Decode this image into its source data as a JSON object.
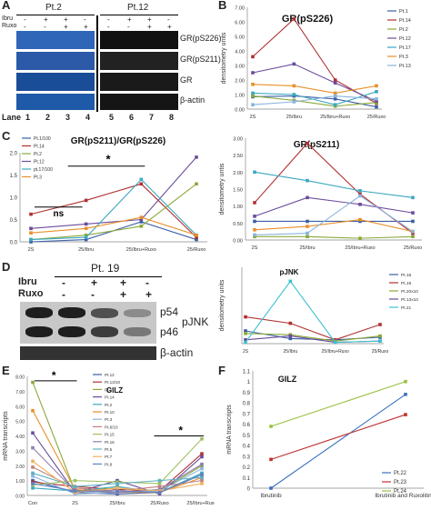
{
  "panelA": {
    "letter": "A",
    "pt2": "Pt.2",
    "pt12": "Pt.12",
    "ibru_label": "Ibru",
    "ruxo_label": "Ruxo",
    "ibru_signs": [
      "-",
      "+",
      "+",
      "-",
      "-",
      "+",
      "+",
      "-"
    ],
    "ruxo_signs": [
      "-",
      "-",
      "+",
      "+",
      "-",
      "-",
      "+",
      "+"
    ],
    "rows": [
      "GR(pS226)",
      "GR(pS211)",
      "GR",
      "β-actin"
    ],
    "lane_label": "Lane",
    "lanes": [
      "1",
      "2",
      "3",
      "4",
      "5",
      "6",
      "7",
      "8"
    ]
  },
  "panelB": {
    "letter": "B",
    "chart_data": {
      "type": "line",
      "title": "GR(pS226)",
      "ylabel": "densitometry units",
      "categories": [
        "2S",
        "25/Ibru",
        "25/Ibru+Ruxo",
        "25/Ruxo"
      ],
      "ylim": [
        0,
        7
      ],
      "yticks": [
        "0.00",
        "1.00",
        "2.00",
        "3.00",
        "4.00",
        "5.00",
        "6.00",
        "7.00"
      ],
      "series": [
        {
          "name": "Pt.1",
          "color": "#3a5fa8",
          "values": [
            0.85,
            0.9,
            0.7,
            0.15
          ]
        },
        {
          "name": "Pt.14",
          "color": "#b03030",
          "values": [
            3.6,
            6.2,
            2.0,
            0.4
          ]
        },
        {
          "name": "Pt.2",
          "color": "#8aaa3a",
          "values": [
            0.9,
            0.6,
            0.2,
            0.45
          ]
        },
        {
          "name": "Pt.12",
          "color": "#6b4c9a",
          "values": [
            2.5,
            3.1,
            1.8,
            0.55
          ]
        },
        {
          "name": "Pt.17",
          "color": "#3aa8c0",
          "values": [
            1.1,
            1.0,
            0.3,
            1.2
          ]
        },
        {
          "name": "Pt.3",
          "color": "#e8902a",
          "values": [
            1.7,
            1.6,
            1.1,
            1.6
          ]
        },
        {
          "name": "Pt.13",
          "color": "#8ab4e0",
          "values": [
            0.3,
            0.5,
            0.9,
            0.7
          ]
        }
      ]
    }
  },
  "panelC1": {
    "letter": "C",
    "chart_data": {
      "type": "line",
      "title": "GR(pS211)/GR(pS226)",
      "categories": [
        "2S",
        "25/Ibru",
        "25/Ibru+Ruxo",
        "25/Ruxo"
      ],
      "ylim": [
        0,
        2
      ],
      "yticks": [
        "0.0",
        "0.5",
        "1.0",
        "1.5",
        "2.0"
      ],
      "series": [
        {
          "name": "Pt.1/100",
          "color": "#3a5fa8",
          "values": [
            0.0,
            0.05,
            0.45,
            0.05
          ]
        },
        {
          "name": "Pt.14",
          "color": "#b03030",
          "values": [
            0.62,
            0.93,
            1.3,
            0.1
          ]
        },
        {
          "name": "Pt.2",
          "color": "#8aaa3a",
          "values": [
            0.05,
            0.15,
            0.35,
            1.3
          ]
        },
        {
          "name": "Pt.12",
          "color": "#6b4c9a",
          "values": [
            0.3,
            0.4,
            0.5,
            1.9
          ]
        },
        {
          "name": "pt.17/100",
          "color": "#3aa8c0",
          "values": [
            0.05,
            0.1,
            1.4,
            0.15
          ]
        },
        {
          "name": "Pt.3",
          "color": "#e8902a",
          "values": [
            0.2,
            0.3,
            0.55,
            0.15
          ]
        }
      ],
      "annotations": [
        "ns",
        "*"
      ]
    }
  },
  "panelC2": {
    "chart_data": {
      "type": "line",
      "title": "GR(pS211)",
      "ylabel": "densitometry untis",
      "categories": [
        "2S",
        "25/Ibru",
        "25/Ibru+Ruxo",
        "25/Ruxo"
      ],
      "ylim": [
        0,
        3
      ],
      "yticks": [
        "0.00",
        "0.50",
        "1.00",
        "1.50",
        "2.00",
        "2.50",
        "3.00"
      ],
      "series": [
        {
          "name": "Pt.1",
          "color": "#3a5fa8",
          "values": [
            0.55,
            0.55,
            0.55,
            0.55
          ]
        },
        {
          "name": "Pt.14",
          "color": "#b03030",
          "values": [
            1.1,
            2.85,
            1.35,
            0.2
          ]
        },
        {
          "name": "Pt.2",
          "color": "#8aaa3a",
          "values": [
            0.1,
            0.1,
            0.05,
            0.1
          ]
        },
        {
          "name": "Pt.12",
          "color": "#6b4c9a",
          "values": [
            0.7,
            1.25,
            1.05,
            0.8
          ]
        },
        {
          "name": "Pt.17",
          "color": "#3aa8c0",
          "values": [
            2.0,
            1.75,
            1.45,
            1.25
          ]
        },
        {
          "name": "Pt.3",
          "color": "#e8902a",
          "values": [
            0.3,
            0.4,
            0.6,
            0.25
          ]
        },
        {
          "name": "Pt.13",
          "color": "#8ab4e0",
          "values": [
            0.15,
            0.2,
            1.3,
            0.25
          ]
        }
      ]
    }
  },
  "panelD": {
    "letter": "D",
    "patient": "Pt. 19",
    "ibru_label": "Ibru",
    "ruxo_label": "Ruxo",
    "ibru_signs": [
      "-",
      "+",
      "+",
      "-"
    ],
    "ruxo_signs": [
      "-",
      "-",
      "+",
      "+"
    ],
    "p54": "p54",
    "p46": "p46",
    "pjnk": "pJNK",
    "actin": "β-actin"
  },
  "panelD2": {
    "chart_data": {
      "type": "line",
      "title": "pJNK",
      "ylabel": "densitometry units",
      "categories": [
        "2S",
        "25/Ibru",
        "25/Ibru+Ruxo",
        "25/Ruxo"
      ],
      "ylim": [
        0,
        3
      ],
      "series": [
        {
          "name": "Pt.18",
          "color": "#3a5fa8",
          "values": [
            0.5,
            0.2,
            0.15,
            0.25
          ]
        },
        {
          "name": "Pt.19",
          "color": "#b03030",
          "values": [
            1.05,
            0.8,
            0.15,
            0.75
          ]
        },
        {
          "name": "Pt.20x10",
          "color": "#8aaa3a",
          "values": [
            0.4,
            0.35,
            0.1,
            0.3
          ]
        },
        {
          "name": "Pt.13x10",
          "color": "#6b4c9a",
          "values": [
            0.15,
            0.3,
            0.05,
            0.1
          ]
        },
        {
          "name": "Pt.21",
          "color": "#3ac0d0",
          "values": [
            0.05,
            2.45,
            0.05,
            0.1
          ]
        }
      ]
    }
  },
  "panelE": {
    "letter": "E",
    "chart_data": {
      "type": "line",
      "title": "GILZ",
      "ylabel": "mRNA transcripts",
      "categories": [
        "Con",
        "2S",
        "25/Ibru",
        "25/Ruxo",
        "25/Ibru+Ruxo"
      ],
      "ylim": [
        0,
        8
      ],
      "yticks": [
        "0.00",
        "1.00",
        "2.00",
        "3.00",
        "4.00",
        "5.00",
        "6.00",
        "7.00",
        "8.00"
      ],
      "series": [
        {
          "name": "Pt.12",
          "color": "#3a5fa8",
          "values": [
            1.0,
            0.2,
            0.1,
            0.2,
            1.4
          ]
        },
        {
          "name": "Pt.13/10",
          "color": "#b03030",
          "values": [
            0.9,
            0.6,
            0.4,
            0.3,
            2.8
          ]
        },
        {
          "name": "Pt.1",
          "color": "#8aaa3a",
          "values": [
            7.6,
            0.3,
            0.5,
            0.3,
            2.0
          ]
        },
        {
          "name": "Pt.14",
          "color": "#6b4c9a",
          "values": [
            4.2,
            0.2,
            1.0,
            0.1,
            2.6
          ]
        },
        {
          "name": "Pt.2",
          "color": "#3aa8c0",
          "values": [
            0.5,
            0.3,
            0.6,
            0.2,
            1.5
          ]
        },
        {
          "name": "Pt.10",
          "color": "#e8902a",
          "values": [
            5.7,
            0.4,
            0.2,
            0.2,
            1.2
          ]
        },
        {
          "name": "Pt.3",
          "color": "#8ab4e0",
          "values": [
            1.3,
            0.1,
            0.2,
            0.3,
            1.8
          ]
        },
        {
          "name": "Pt.6/10",
          "color": "#c08080",
          "values": [
            1.9,
            0.5,
            0.3,
            0.6,
            1.0
          ]
        },
        {
          "name": "Pt.15",
          "color": "#a0c060",
          "values": [
            0.7,
            1.0,
            0.9,
            0.8,
            3.8
          ]
        },
        {
          "name": "Pt.16",
          "color": "#9080b0",
          "values": [
            3.2,
            0.3,
            0.2,
            0.4,
            2.1
          ]
        },
        {
          "name": "Pt.5",
          "color": "#60b0c0",
          "values": [
            1.5,
            0.6,
            0.8,
            1.0,
            1.2
          ]
        },
        {
          "name": "Pt.7",
          "color": "#f0b060",
          "values": [
            2.3,
            0.2,
            0.5,
            0.3,
            0.8
          ]
        },
        {
          "name": "Pt.8",
          "color": "#6080c0",
          "values": [
            0.8,
            0.3,
            0.3,
            0.2,
            1.4
          ]
        }
      ],
      "annotations": [
        "*",
        "*"
      ]
    }
  },
  "panelF": {
    "letter": "F",
    "chart_data": {
      "type": "line",
      "title": "GILZ",
      "ylabel": "mRNA transcripts",
      "categories": [
        "Ibrutinib",
        "Ibrutinib and Ruxolitinib"
      ],
      "ylim": [
        0,
        1.1
      ],
      "yticks": [
        "0",
        "0.1",
        "0.2",
        "0.3",
        "0.4",
        "0.5",
        "0.6",
        "0.7",
        "0.8",
        "0.9",
        "1",
        "1.1"
      ],
      "series": [
        {
          "name": "Pt.22",
          "color": "#3a6fc0",
          "values": [
            0.0,
            0.88
          ]
        },
        {
          "name": "Pt.23",
          "color": "#c03030",
          "values": [
            0.27,
            0.69
          ]
        },
        {
          "name": "Pt.24",
          "color": "#9ac040",
          "values": [
            0.58,
            1.0
          ]
        }
      ]
    }
  }
}
